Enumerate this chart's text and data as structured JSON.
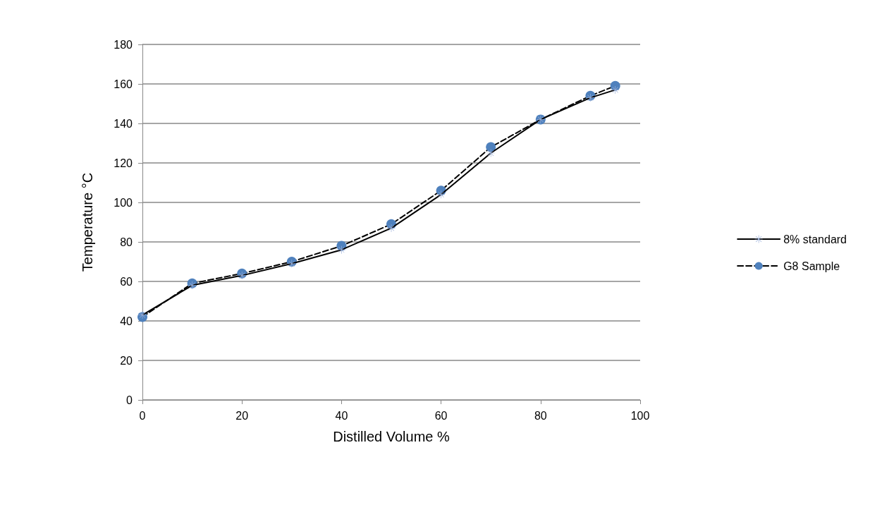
{
  "chart_data": {
    "type": "line",
    "xlabel": "Distilled Volume %",
    "ylabel": "Temperature °C",
    "x": [
      0,
      10,
      20,
      30,
      40,
      50,
      60,
      70,
      80,
      90,
      95
    ],
    "series": [
      {
        "name": "8% standard",
        "color": "#9bb0d9",
        "marker": "cross",
        "line_style": "solid",
        "values": [
          43,
          58,
          63,
          69,
          76,
          87,
          104,
          125,
          142,
          153,
          157
        ]
      },
      {
        "name": "G8 Sample",
        "color": "#4f81bd",
        "marker": "circle",
        "line_style": "dashed",
        "values": [
          42,
          59,
          64,
          70,
          78,
          89,
          106,
          128,
          142,
          154,
          159
        ]
      }
    ],
    "xlim": [
      0,
      100
    ],
    "xticks": [
      0,
      20,
      40,
      60,
      80,
      100
    ],
    "ylim": [
      0,
      180
    ],
    "yticks": [
      0,
      20,
      40,
      60,
      80,
      100,
      120,
      140,
      160,
      180
    ],
    "grid": "y",
    "legend": "right"
  }
}
